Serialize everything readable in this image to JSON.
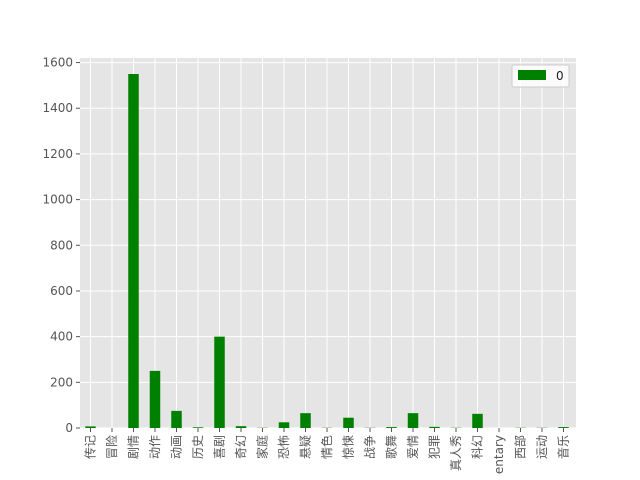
{
  "chart_data": {
    "type": "bar",
    "categories": [
      "传记",
      "冒险",
      "剧情",
      "动作",
      "动画",
      "历史",
      "喜剧",
      "奇幻",
      "家庭",
      "恐怖",
      "悬疑",
      "情色",
      "惊悚",
      "战争",
      "歌舞",
      "爱情",
      "犯罪",
      "真人秀",
      "科幻",
      "entary",
      "西部",
      "运动",
      "音乐"
    ],
    "series": [
      {
        "name": "0",
        "values": [
          7,
          0,
          1550,
          250,
          75,
          3,
          400,
          8,
          1,
          25,
          65,
          1,
          45,
          1,
          4,
          65,
          5,
          1,
          62,
          0,
          1,
          1,
          4
        ]
      }
    ],
    "colors": {
      "bar": "#008000",
      "background": "#e5e5e5",
      "grid": "#ffffff"
    },
    "ylim": [
      0,
      1620
    ],
    "yticks": [
      0,
      200,
      400,
      600,
      800,
      1000,
      1200,
      1400,
      1600
    ],
    "grid": true,
    "legend_position": "top-right"
  }
}
